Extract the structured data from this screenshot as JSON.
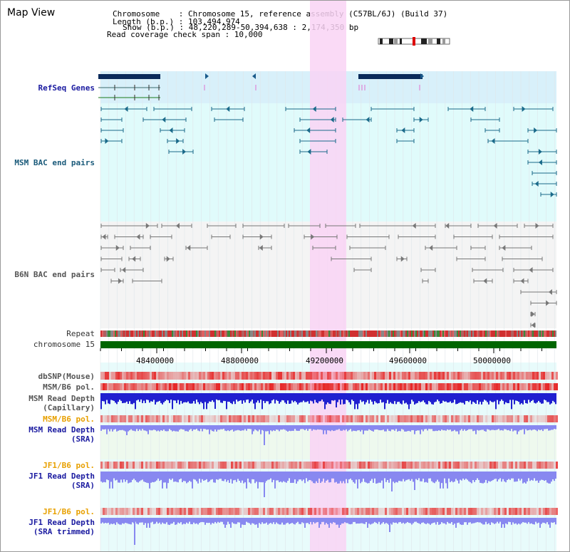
{
  "title": "Map View",
  "header": {
    "line1": "Chromosome    : Chromosome 15, reference assembly (C57BL/6J) (Build 37)",
    "line2": "Length (b.p.) : 103,494,974",
    "line3": "Show (b.p.) : 48,220,289-50,394,638 : 2,174,350 bp",
    "line4": "Read coverage check span : 10,000"
  },
  "tracks": {
    "refseq": "RefSeq Genes",
    "msm_bac": "MSM BAC end pairs",
    "b6n_bac": "B6N BAC end pairs",
    "repeat": "Repeat",
    "chromosome": "chromosome 15",
    "dbsnp": "dbSNP(Mouse)",
    "msm_b6_pol_1": "MSM/B6 pol.",
    "msm_depth_cap_1": "MSM Read Depth",
    "msm_depth_cap_2": "(Capillary)",
    "msm_b6_pol_2": "MSM/B6 pol.",
    "msm_depth_sra_1": "MSM Read Depth",
    "msm_depth_sra_2": "(SRA)",
    "jf1_b6_pol_1": "JF1/B6 pol.",
    "jf1_depth_sra_1": "JF1 Read Depth",
    "jf1_depth_sra_2": "(SRA)",
    "jf1_b6_pol_2": "JF1/B6 pol.",
    "jf1_depth_trim_1": "JF1 Read Depth",
    "jf1_depth_trim_2": "(SRA trimmed)"
  },
  "axis_ticks": [
    "48400000",
    "48800000",
    "49200000",
    "49600000",
    "50000000"
  ],
  "colors": {
    "highlight": "#f9d4f4",
    "refseq_bg": "#d8f0fa",
    "bac_bg": "#e0fbfb",
    "b6n_bg": "#f4f4f4",
    "chromosome": "#006600",
    "depth_blue": "#2020d0",
    "depth_light": "#8888f0",
    "snp_red": "#f06060"
  }
}
